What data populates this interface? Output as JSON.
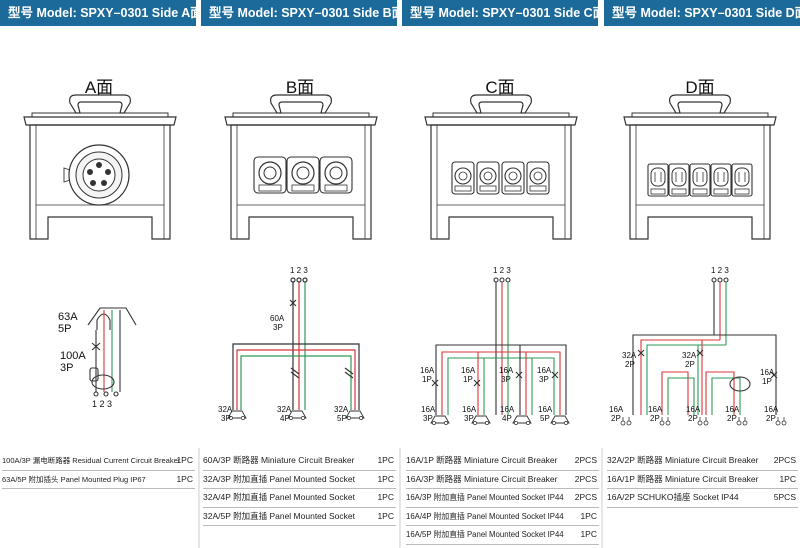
{
  "headers": [
    "型号 Model: SPXY–0301 Side A面",
    "型号 Model: SPXY–0301 Side B面",
    "型号 Model: SPXY–0301 Side C面",
    "型号 Model: SPXY–0301 Side D面"
  ],
  "faces": [
    "A面",
    "B面",
    "C面",
    "D面"
  ],
  "panel_a": {
    "b1_rating": "63A",
    "b1_poles": "5P",
    "b2_rating": "100A",
    "b2_poles": "3P",
    "terminals": "1 2 3"
  },
  "panel_b": {
    "top": "1 2 3",
    "breaker_rating": "60A",
    "breaker_poles": "3P",
    "out1_rating": "32A",
    "out1_poles": "3P",
    "out2_rating": "32A",
    "out2_poles": "4P",
    "out3_rating": "32A",
    "out3_poles": "5P"
  },
  "panel_c": {
    "top": "1 2 3",
    "breakers": [
      {
        "rating": "16A",
        "poles": "1P"
      },
      {
        "rating": "16A",
        "poles": "1P"
      },
      {
        "rating": "16A",
        "poles": "3P"
      },
      {
        "rating": "16A",
        "poles": "3P"
      }
    ],
    "outputs": [
      {
        "rating": "16A",
        "poles": "3P"
      },
      {
        "rating": "16A",
        "poles": "3P"
      },
      {
        "rating": "16A",
        "poles": "4P"
      },
      {
        "rating": "16A",
        "poles": "5P"
      }
    ]
  },
  "panel_d": {
    "top": "1 2 3",
    "b_left_rating": "32A",
    "b_left_poles": "2P",
    "b_mid_rating": "32A",
    "b_mid_poles": "2P",
    "b_right_rating": "16A",
    "b_right_poles": "1P",
    "outputs": [
      {
        "rating": "16A",
        "poles": "2P"
      },
      {
        "rating": "16A",
        "poles": "2P"
      },
      {
        "rating": "16A",
        "poles": "2P"
      },
      {
        "rating": "16A",
        "poles": "2P"
      },
      {
        "rating": "16A",
        "poles": "2P"
      }
    ]
  },
  "specs": {
    "a": [
      {
        "desc": "100A/3P 漏电断路器 Residual Current Circuit Breaker",
        "qty": "1PC"
      },
      {
        "desc": "63A/5P 附加插头 Panel Mounted Plug IP67",
        "qty": "1PC"
      }
    ],
    "b": [
      {
        "desc": "60A/3P 断路器 Miniature Circuit Breaker",
        "qty": "1PC"
      },
      {
        "desc": "32A/3P 附加直插 Panel Mounted Socket",
        "qty": "1PC"
      },
      {
        "desc": "32A/4P 附加直插 Panel Mounted Socket",
        "qty": "1PC"
      },
      {
        "desc": "32A/5P 附加直插 Panel Mounted Socket",
        "qty": "1PC"
      }
    ],
    "c": [
      {
        "desc": "16A/1P 断路器 Miniature Circuit Breaker",
        "qty": "2PCS"
      },
      {
        "desc": "16A/3P 断路器 Miniature Circuit Breaker",
        "qty": "2PCS"
      },
      {
        "desc": "16A/3P 附加直插 Panel Mounted Socket IP44",
        "qty": "2PCS"
      },
      {
        "desc": "16A/4P 附加直插 Panel Mounted Socket IP44",
        "qty": "1PC"
      },
      {
        "desc": "16A/5P 附加直插 Panel Mounted Socket IP44",
        "qty": "1PC"
      }
    ],
    "d": [
      {
        "desc": "32A/2P 断路器 Miniature Circuit Breaker",
        "qty": "2PCS"
      },
      {
        "desc": "16A/1P 断路器 Miniature Circuit Breaker",
        "qty": "1PC"
      },
      {
        "desc": "16A/2P SCHUKO插座 Socket IP44",
        "qty": "5PCS"
      }
    ]
  }
}
